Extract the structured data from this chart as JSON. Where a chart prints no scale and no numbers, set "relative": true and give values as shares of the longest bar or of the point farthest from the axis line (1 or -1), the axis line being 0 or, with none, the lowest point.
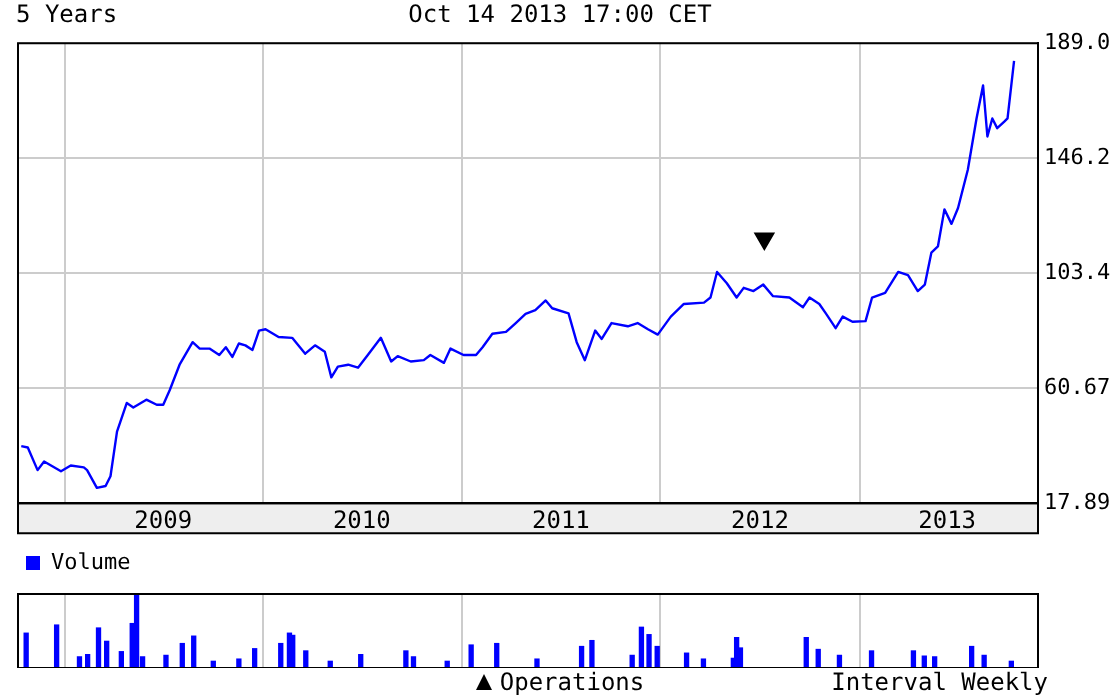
{
  "chart_data": [
    {
      "type": "line",
      "title": "5 Years",
      "subtitle": "Oct 14 2013 17:00 CET",
      "annotations": [
        "Interval Weekly"
      ],
      "xlim": [
        "2008-10-07",
        "2013-11-25"
      ],
      "xticks": [
        {
          "value": "2009-01-01",
          "label": null
        },
        {
          "value": "2009-07-01",
          "label": "2009"
        },
        {
          "value": "2010-01-01",
          "label": null
        },
        {
          "value": "2010-07-01",
          "label": "2010"
        },
        {
          "value": "2011-01-01",
          "label": null
        },
        {
          "value": "2011-07-02",
          "label": "2011"
        },
        {
          "value": "2012-01-01",
          "label": null
        },
        {
          "value": "2012-07-02",
          "label": "2012"
        },
        {
          "value": "2013-01-01",
          "label": null
        },
        {
          "value": "2013-06-11",
          "label": "2013"
        }
      ],
      "ylim": [
        17.89,
        189.0
      ],
      "yticks": [
        17.89,
        60.67,
        103.4,
        146.2,
        {
          "value": 189.0,
          "label": "189.0"
        }
      ],
      "grid": true,
      "legend": "bottom",
      "marker": "none",
      "line_style": "solid",
      "series": [
        {
          "color": "#0000ff",
          "x": [
            "2008-10-13",
            "2008-10-25",
            "2008-11-12",
            "2008-11-24",
            "2008-12-25",
            "2009-01-12",
            "2009-02-05",
            "2009-02-11",
            "2009-03-01",
            "2009-03-17",
            "2009-03-26",
            "2009-04-07",
            "2009-04-25",
            "2009-05-07",
            "2009-05-31",
            "2009-06-19",
            "2009-07-01",
            "2009-07-13",
            "2009-07-31",
            "2009-08-24",
            "2009-09-06",
            "2009-09-24",
            "2009-10-12",
            "2009-10-24",
            "2009-11-05",
            "2009-11-17",
            "2009-11-29",
            "2009-12-12",
            "2009-12-24",
            "2010-01-05",
            "2010-01-29",
            "2010-02-23",
            "2010-03-19",
            "2010-04-06",
            "2010-04-24",
            "2010-05-06",
            "2010-05-18",
            "2010-06-06",
            "2010-06-24",
            "2010-07-12",
            "2010-08-05",
            "2010-08-24",
            "2010-09-05",
            "2010-09-29",
            "2010-10-23",
            "2010-11-04",
            "2010-11-29",
            "2010-12-11",
            "2011-01-04",
            "2011-01-27",
            "2011-02-08",
            "2011-02-26",
            "2011-03-23",
            "2011-04-10",
            "2011-04-28",
            "2011-05-16",
            "2011-06-04",
            "2011-06-16",
            "2011-07-16",
            "2011-07-31",
            "2011-08-15",
            "2011-09-03",
            "2011-09-15",
            "2011-10-03",
            "2011-11-02",
            "2011-11-20",
            "2011-12-09",
            "2011-12-27",
            "2012-01-20",
            "2012-02-13",
            "2012-03-21",
            "2012-04-02",
            "2012-04-14",
            "2012-05-02",
            "2012-05-20",
            "2012-06-02",
            "2012-06-20",
            "2012-07-08",
            "2012-07-26",
            "2012-08-25",
            "2012-09-19",
            "2012-10-01",
            "2012-10-19",
            "2012-10-31",
            "2012-11-18",
            "2012-12-01",
            "2012-12-19",
            "2013-01-12",
            "2013-01-24",
            "2013-02-17",
            "2013-03-13",
            "2013-03-31",
            "2013-04-18",
            "2013-05-01",
            "2013-05-13",
            "2013-05-25",
            "2013-06-06",
            "2013-06-19",
            "2013-07-01",
            "2013-07-19",
            "2013-08-04",
            "2013-08-16",
            "2013-08-24",
            "2013-09-02",
            "2013-09-11",
            "2013-09-24",
            "2013-09-30",
            "2013-10-12"
          ],
          "values": [
            39.1,
            38.6,
            30.2,
            33.4,
            29.8,
            31.9,
            31.2,
            30.2,
            23.6,
            24.3,
            27.9,
            44.5,
            55.2,
            53.5,
            56.4,
            54.5,
            54.5,
            60.0,
            69.4,
            77.8,
            75.4,
            75.4,
            73.0,
            75.9,
            72.3,
            77.3,
            76.6,
            74.9,
            82.1,
            82.6,
            79.7,
            79.4,
            73.5,
            76.6,
            74.2,
            64.7,
            68.7,
            69.4,
            68.3,
            73.0,
            79.4,
            70.6,
            72.6,
            70.6,
            71.1,
            73.0,
            70.1,
            75.4,
            73.0,
            73.0,
            75.9,
            80.9,
            81.6,
            84.9,
            88.3,
            89.7,
            93.3,
            90.4,
            88.5,
            77.8,
            71.1,
            82.1,
            79.0,
            84.9,
            83.7,
            84.9,
            82.6,
            80.6,
            87.3,
            92.0,
            92.5,
            94.4,
            103.9,
            99.7,
            94.4,
            98.0,
            96.8,
            99.2,
            94.9,
            94.4,
            90.8,
            94.4,
            92.0,
            88.5,
            83.0,
            87.3,
            85.4,
            85.6,
            94.4,
            96.1,
            103.9,
            102.7,
            96.8,
            99.2,
            111.1,
            113.4,
            127.2,
            121.8,
            127.7,
            141.9,
            161.0,
            173.3,
            154.3,
            161.0,
            157.4,
            159.8,
            161.0,
            182.4
          ]
        },
        {
          "type": "scatter",
          "name": "Operations",
          "color": "#000000",
          "marker": "triangle",
          "x": [
            "2012-07-10"
          ],
          "values": [
            116.3
          ]
        }
      ]
    },
    {
      "type": "bar",
      "relative": true,
      "legend": "top left",
      "tick_labels": false,
      "grid": "x",
      "xlim": [
        "2008-10-07",
        "2013-11-25"
      ],
      "xticks": [
        {
          "value": "2009-01-01",
          "label": null
        },
        {
          "value": "2010-01-01",
          "label": null
        },
        {
          "value": "2011-01-01",
          "label": null
        },
        {
          "value": "2012-01-01",
          "label": null
        },
        {
          "value": "2013-01-01",
          "label": null
        }
      ],
      "series": [
        {
          "name": "Volume",
          "color": "#0000ff",
          "x": [
            "2008-10-22",
            "2008-12-17",
            "2009-01-28",
            "2009-02-12",
            "2009-03-04",
            "2009-03-19",
            "2009-04-15",
            "2009-05-05",
            "2009-05-13",
            "2009-05-24",
            "2009-07-06",
            "2009-08-05",
            "2009-08-26",
            "2009-10-01",
            "2009-11-17",
            "2009-12-16",
            "2010-02-02",
            "2010-02-18",
            "2010-02-24",
            "2010-03-20",
            "2010-05-04",
            "2010-06-29",
            "2010-09-20",
            "2010-10-04",
            "2010-12-05",
            "2011-01-18",
            "2011-03-06",
            "2011-05-19",
            "2011-08-09",
            "2011-08-28",
            "2011-11-10",
            "2011-11-27",
            "2011-12-11",
            "2011-12-26",
            "2012-02-18",
            "2012-03-20",
            "2012-05-14",
            "2012-05-20",
            "2012-05-27",
            "2012-09-25",
            "2012-10-17",
            "2012-11-25",
            "2013-01-23",
            "2013-04-10",
            "2013-04-30",
            "2013-05-19",
            "2013-07-26",
            "2013-08-18",
            "2013-10-07"
          ],
          "values": [
            0.47,
            0.58,
            0.15,
            0.18,
            0.54,
            0.36,
            0.22,
            0.6,
            1,
            0.15,
            0.17,
            0.33,
            0.43,
            0.09,
            0.12,
            0.26,
            0.33,
            0.47,
            0.44,
            0.23,
            0.09,
            0.18,
            0.23,
            0.15,
            0.09,
            0.31,
            0.33,
            0.12,
            0.29,
            0.37,
            0.17,
            0.55,
            0.45,
            0.29,
            0.2,
            0.12,
            0.13,
            0.41,
            0.27,
            0.41,
            0.25,
            0.17,
            0.23,
            0.23,
            0.16,
            0.15,
            0.29,
            0.17,
            0.09
          ]
        }
      ]
    }
  ]
}
